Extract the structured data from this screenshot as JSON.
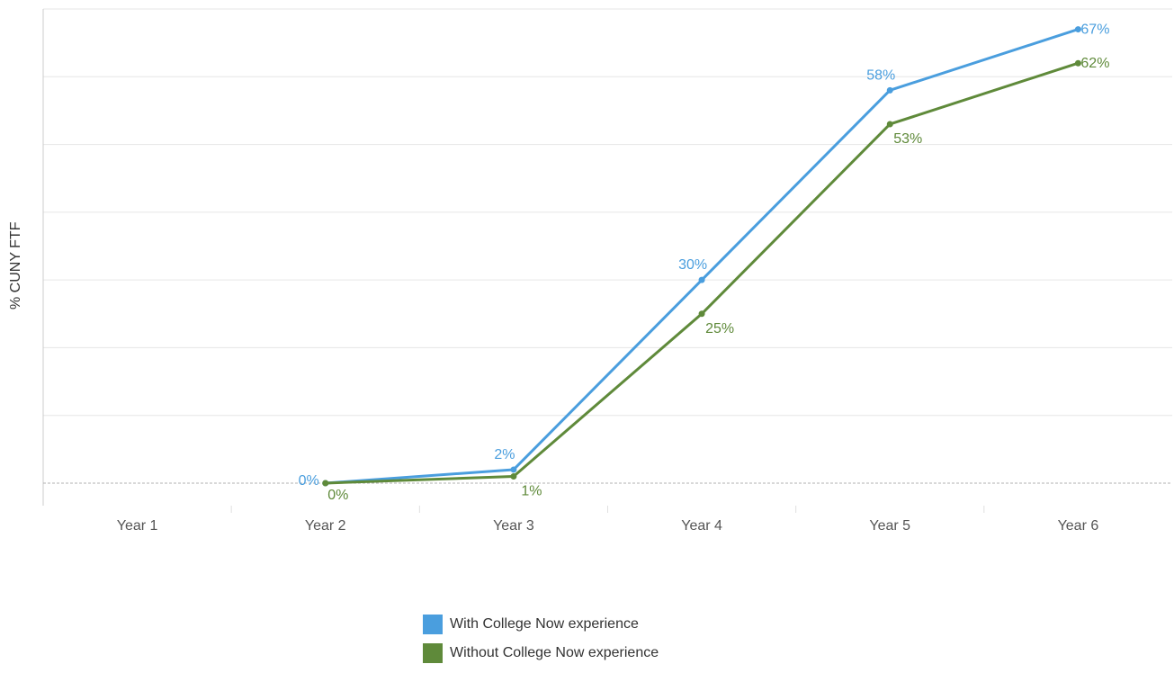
{
  "chart_data": {
    "type": "line",
    "ylabel": "% CUNY FTF",
    "categories": [
      "Year 1",
      "Year 2",
      "Year 3",
      "Year 4",
      "Year 5",
      "Year 6"
    ],
    "ylim": [
      0,
      70
    ],
    "series": [
      {
        "name": "With College Now experience",
        "color": "#4a9ede",
        "values": [
          null,
          0,
          2,
          30,
          58,
          67
        ],
        "labels": [
          "",
          "0%",
          "2%",
          "30%",
          "58%",
          "67%"
        ]
      },
      {
        "name": "Without College Now experience",
        "color": "#5f8a3a",
        "values": [
          null,
          0,
          1,
          25,
          53,
          62
        ],
        "labels": [
          "",
          "0%",
          "1%",
          "25%",
          "53%",
          "62%"
        ]
      }
    ]
  }
}
